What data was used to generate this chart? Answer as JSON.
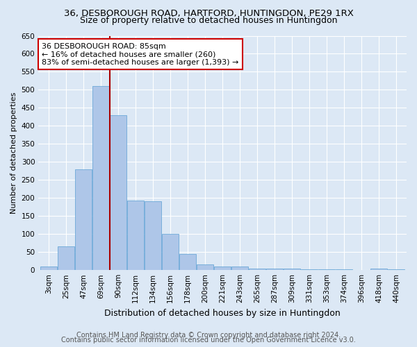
{
  "title": "36, DESBOROUGH ROAD, HARTFORD, HUNTINGDON, PE29 1RX",
  "subtitle": "Size of property relative to detached houses in Huntingdon",
  "xlabel": "Distribution of detached houses by size in Huntingdon",
  "ylabel": "Number of detached properties",
  "categories": [
    "3sqm",
    "25sqm",
    "47sqm",
    "69sqm",
    "90sqm",
    "112sqm",
    "134sqm",
    "156sqm",
    "178sqm",
    "200sqm",
    "221sqm",
    "243sqm",
    "265sqm",
    "287sqm",
    "309sqm",
    "331sqm",
    "353sqm",
    "374sqm",
    "396sqm",
    "418sqm",
    "440sqm"
  ],
  "values": [
    10,
    65,
    280,
    510,
    430,
    193,
    190,
    100,
    45,
    15,
    10,
    10,
    5,
    5,
    5,
    2,
    2,
    2,
    0,
    5,
    2
  ],
  "bar_color": "#aec6e8",
  "bar_edge_color": "#5a9fd4",
  "vline_color": "#aa0000",
  "annotation_text": "36 DESBOROUGH ROAD: 85sqm\n← 16% of detached houses are smaller (260)\n83% of semi-detached houses are larger (1,393) →",
  "annotation_box_color": "#ffffff",
  "annotation_box_edge": "#cc0000",
  "ylim": [
    0,
    650
  ],
  "yticks": [
    0,
    50,
    100,
    150,
    200,
    250,
    300,
    350,
    400,
    450,
    500,
    550,
    600,
    650
  ],
  "footer1": "Contains HM Land Registry data © Crown copyright and database right 2024.",
  "footer2": "Contains public sector information licensed under the Open Government Licence v3.0.",
  "bg_color": "#dce8f5",
  "grid_color": "#ffffff",
  "title_fontsize": 9.5,
  "subtitle_fontsize": 9,
  "ylabel_fontsize": 8,
  "xlabel_fontsize": 9,
  "tick_fontsize": 7.5,
  "footer_fontsize": 7,
  "annot_fontsize": 8
}
